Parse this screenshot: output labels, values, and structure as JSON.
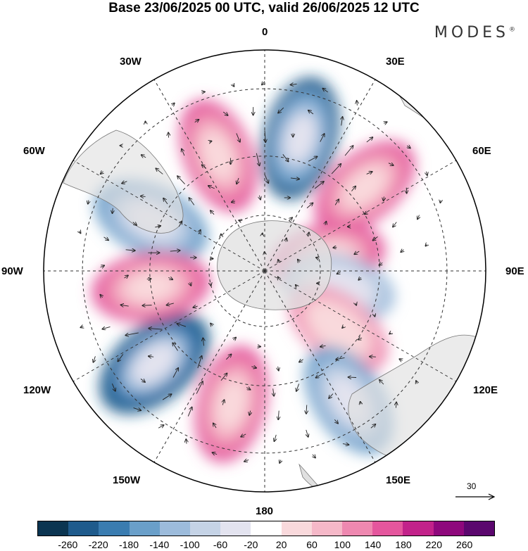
{
  "title": "Base 23/06/2025 00 UTC, valid 26/06/2025 12 UTC",
  "brand": "MODES",
  "brand_mark": "®",
  "longitude_labels": {
    "lon_0": "0",
    "lon_30e": "30E",
    "lon_60e": "60E",
    "lon_90e": "90E",
    "lon_120e": "120E",
    "lon_150e": "150E",
    "lon_180": "180",
    "lon_150w": "150W",
    "lon_120w": "120W",
    "lon_90w": "90W",
    "lon_60w": "60W",
    "lon_30w": "30W"
  },
  "reference_vector_label": "30",
  "colorbar": {
    "colors": [
      "#0b3551",
      "#1f5b8c",
      "#3a7cb0",
      "#6a9fc9",
      "#9cbbdb",
      "#c5d3e6",
      "#e3e3ef",
      "#ffffff",
      "#f9d9dc",
      "#f5b8c8",
      "#ee88b0",
      "#e4569d",
      "#c2228a",
      "#8e087c",
      "#5b076e"
    ],
    "tick_labels": [
      "-260",
      "-220",
      "-180",
      "-140",
      "-100",
      "-60",
      "-20",
      "20",
      "60",
      "100",
      "140",
      "180",
      "220",
      "260"
    ]
  },
  "anomaly_centers": [
    {
      "lon": 15,
      "lat": -43,
      "value": -210
    },
    {
      "lon": -22,
      "lat": -47,
      "value": 150
    },
    {
      "lon": -66,
      "lat": -47,
      "value": -170
    },
    {
      "lon": 50,
      "lat": -45,
      "value": 150
    },
    {
      "lon": 78,
      "lat": -67,
      "value": 140
    },
    {
      "lon": 103,
      "lat": -63,
      "value": -120
    },
    {
      "lon": 128,
      "lat": -57,
      "value": 120
    },
    {
      "lon": 147,
      "lat": -38,
      "value": -170
    },
    {
      "lon": -166,
      "lat": -43,
      "value": 160
    },
    {
      "lon": -130,
      "lat": -41,
      "value": -240
    },
    {
      "lon": -98,
      "lat": -50,
      "value": 160
    }
  ]
}
